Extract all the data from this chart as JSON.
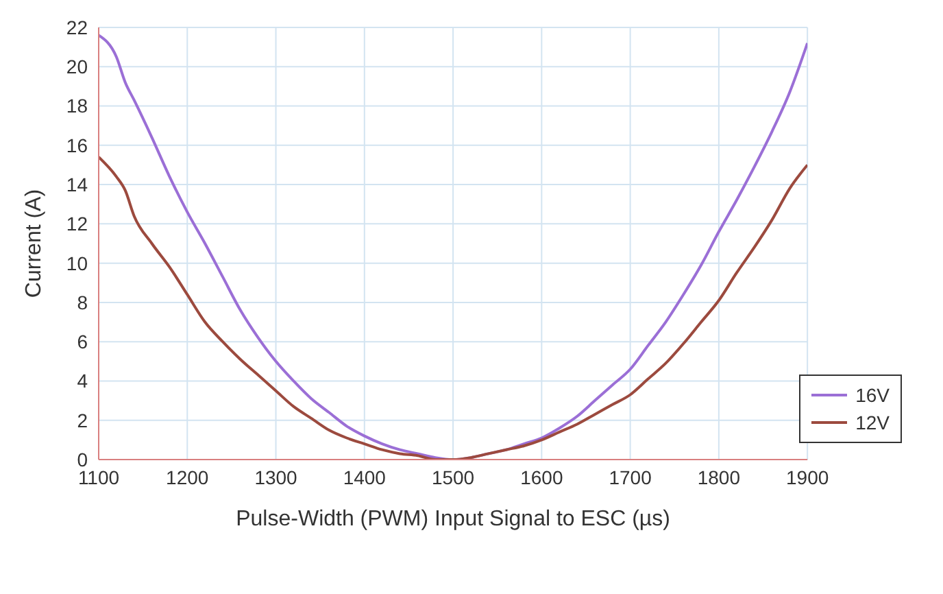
{
  "chart_data": {
    "type": "line",
    "xlabel": "Pulse-Width (PWM) Input Signal to ESC (µs)",
    "ylabel": "Current (A)",
    "x": [
      1100,
      1120,
      1130,
      1140,
      1160,
      1180,
      1200,
      1220,
      1240,
      1260,
      1280,
      1300,
      1320,
      1340,
      1360,
      1380,
      1400,
      1420,
      1440,
      1460,
      1480,
      1500,
      1520,
      1540,
      1560,
      1580,
      1600,
      1620,
      1640,
      1660,
      1680,
      1700,
      1720,
      1740,
      1760,
      1780,
      1800,
      1820,
      1840,
      1860,
      1880,
      1900
    ],
    "series": [
      {
        "name": "16V",
        "color": "#9b6fd6",
        "values": [
          21.6,
          20.5,
          19.2,
          18.3,
          16.4,
          14.4,
          12.6,
          11.0,
          9.3,
          7.6,
          6.2,
          5.0,
          4.0,
          3.1,
          2.4,
          1.7,
          1.2,
          0.8,
          0.5,
          0.3,
          0.1,
          0.0,
          0.1,
          0.3,
          0.5,
          0.8,
          1.1,
          1.6,
          2.2,
          3.0,
          3.8,
          4.6,
          5.8,
          7.0,
          8.4,
          9.9,
          11.6,
          13.2,
          14.9,
          16.7,
          18.7,
          21.2
        ]
      },
      {
        "name": "12V",
        "color": "#9c4a3e",
        "values": [
          15.4,
          14.4,
          13.7,
          12.4,
          11.0,
          9.8,
          8.4,
          7.0,
          6.0,
          5.1,
          4.3,
          3.5,
          2.7,
          2.1,
          1.5,
          1.1,
          0.8,
          0.5,
          0.3,
          0.2,
          0.0,
          0.0,
          0.1,
          0.3,
          0.5,
          0.7,
          1.0,
          1.4,
          1.8,
          2.3,
          2.8,
          3.3,
          4.1,
          4.9,
          5.9,
          7.0,
          8.1,
          9.5,
          10.8,
          12.2,
          13.8,
          15.0
        ]
      }
    ],
    "xlim": [
      1100,
      1900
    ],
    "xticks": [
      1100,
      1200,
      1300,
      1400,
      1500,
      1600,
      1700,
      1800,
      1900
    ],
    "ylim": [
      0,
      22
    ],
    "yticks": [
      0,
      2,
      4,
      6,
      8,
      10,
      12,
      14,
      16,
      18,
      20,
      22
    ],
    "grid": true,
    "legend": "bottom right",
    "marker": "none",
    "line_style": "solid"
  }
}
